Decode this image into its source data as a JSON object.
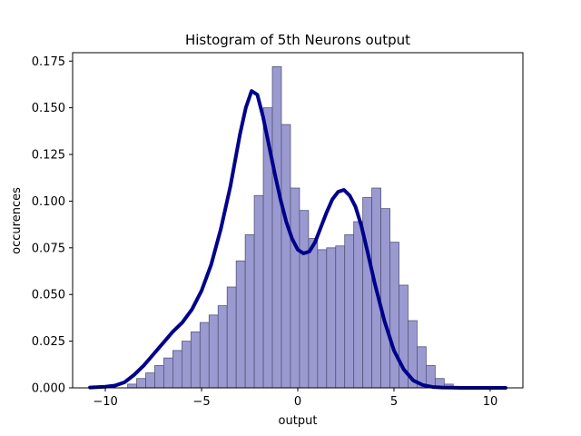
{
  "chart_data": {
    "type": "bar",
    "title": "Histogram of 5th Neurons output",
    "xlabel": "output",
    "ylabel": "occurences",
    "xlim": [
      -11.7,
      11.7
    ],
    "ylim": [
      0,
      0.1795
    ],
    "xticks": [
      -10,
      -5,
      0,
      5,
      10
    ],
    "xtick_labels": [
      "−10",
      "−5",
      "0",
      "5",
      "10"
    ],
    "yticks": [
      0,
      0.025,
      0.05,
      0.075,
      0.1,
      0.125,
      0.15,
      0.175
    ],
    "ytick_labels": [
      "0.000",
      "0.025",
      "0.050",
      "0.075",
      "0.100",
      "0.125",
      "0.150",
      "0.175"
    ],
    "grid": false,
    "histogram": {
      "bin_start": -8.84,
      "bin_width": 0.47,
      "values": [
        0.002,
        0.005,
        0.008,
        0.012,
        0.016,
        0.02,
        0.025,
        0.03,
        0.035,
        0.039,
        0.044,
        0.054,
        0.068,
        0.082,
        0.103,
        0.15,
        0.172,
        0.141,
        0.107,
        0.095,
        0.08,
        0.074,
        0.075,
        0.076,
        0.082,
        0.089,
        0.102,
        0.107,
        0.096,
        0.078,
        0.055,
        0.036,
        0.022,
        0.012,
        0.005,
        0.002
      ],
      "fill_color": "#9a9ad1",
      "edge_color": "#55557a"
    },
    "kde": {
      "color": "#00008b",
      "x": [
        -10.8,
        -10,
        -9.5,
        -9,
        -8.5,
        -8,
        -7.5,
        -7,
        -6.5,
        -6,
        -5.5,
        -5,
        -4.5,
        -4,
        -3.5,
        -3,
        -2.7,
        -2.4,
        -2.1,
        -1.8,
        -1.5,
        -1.2,
        -0.9,
        -0.6,
        -0.3,
        0,
        0.3,
        0.6,
        0.9,
        1.2,
        1.5,
        1.8,
        2.1,
        2.4,
        2.7,
        3,
        3.3,
        3.6,
        4,
        4.5,
        5,
        5.5,
        6,
        6.5,
        7,
        7.5,
        8,
        8.5,
        9,
        9.5,
        10,
        10.8
      ],
      "y": [
        0.0002,
        0.0006,
        0.0012,
        0.003,
        0.007,
        0.012,
        0.018,
        0.024,
        0.03,
        0.035,
        0.042,
        0.052,
        0.066,
        0.085,
        0.108,
        0.136,
        0.15,
        0.159,
        0.157,
        0.145,
        0.13,
        0.115,
        0.101,
        0.089,
        0.08,
        0.074,
        0.072,
        0.073,
        0.078,
        0.086,
        0.094,
        0.101,
        0.105,
        0.106,
        0.103,
        0.097,
        0.087,
        0.074,
        0.056,
        0.036,
        0.02,
        0.01,
        0.004,
        0.0015,
        0.0005,
        0.0002,
        0.0001,
        0,
        0,
        0,
        0,
        0
      ]
    }
  }
}
